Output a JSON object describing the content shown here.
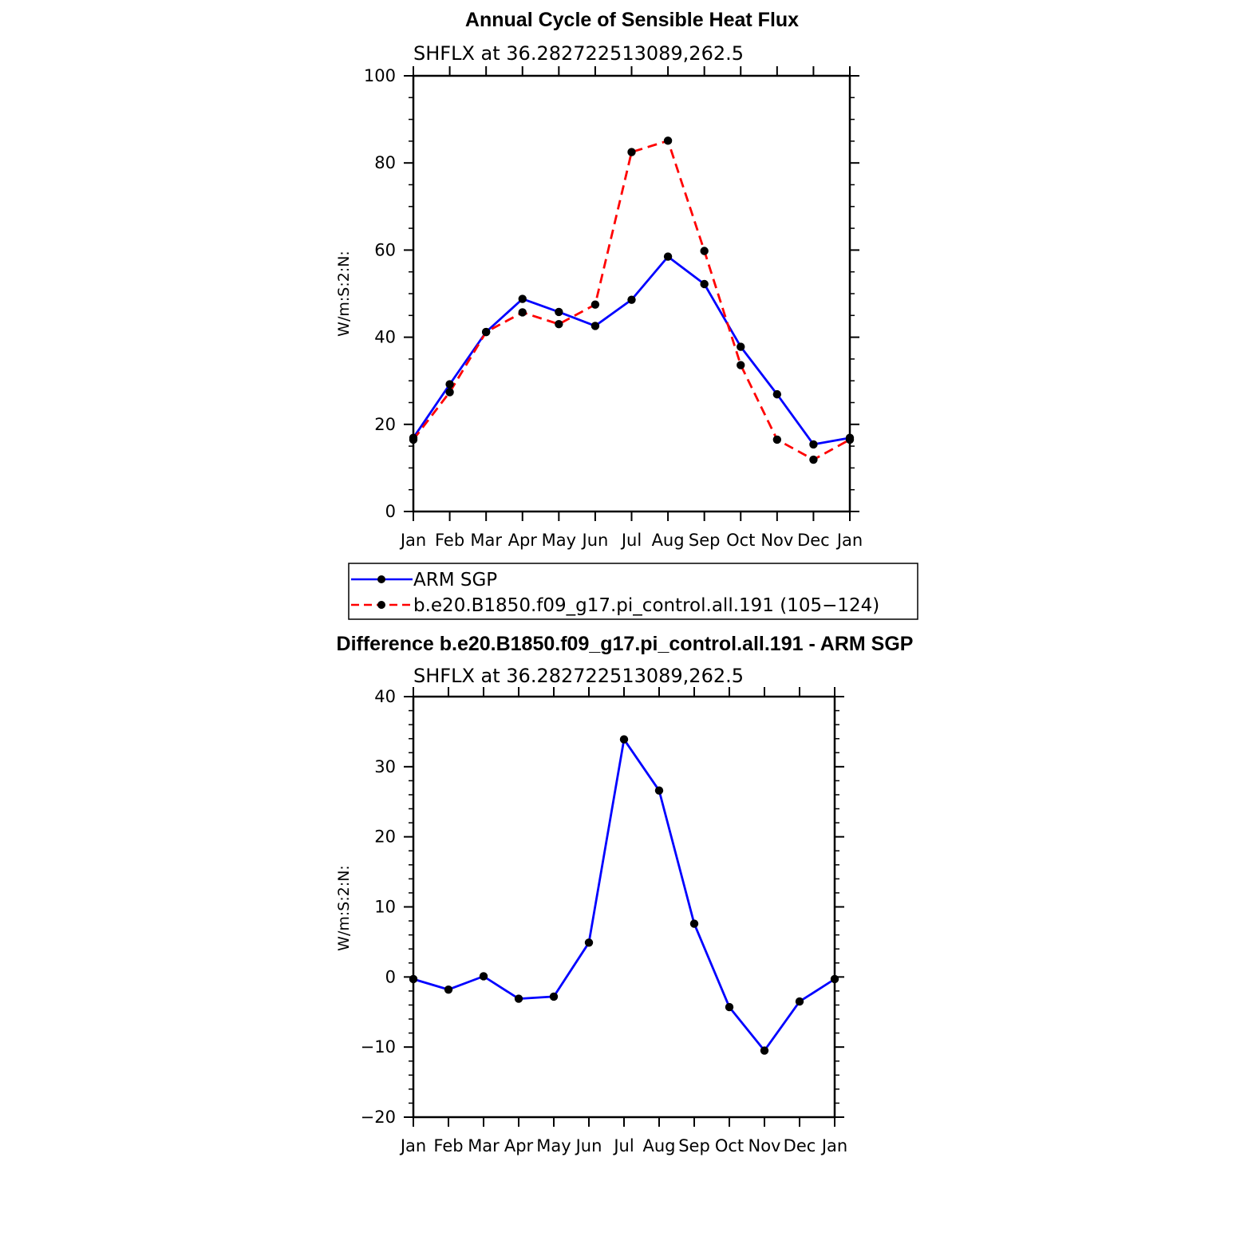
{
  "chart_data": [
    {
      "type": "line",
      "title": "Annual Cycle of Sensible Heat Flux",
      "subtitle": "SHFLX at 36.282722513089,262.5",
      "ylabel": "W/m:S:2:N:",
      "xlabel": "",
      "categories": [
        "Jan",
        "Feb",
        "Mar",
        "Apr",
        "May",
        "Jun",
        "Jul",
        "Aug",
        "Sep",
        "Oct",
        "Nov",
        "Dec",
        "Jan"
      ],
      "ylim": [
        0,
        100
      ],
      "yticks": [
        "0",
        "20",
        "40",
        "60",
        "80",
        "100"
      ],
      "series": [
        {
          "name": "ARM SGP",
          "color": "#0000ff",
          "dash": "solid",
          "values": [
            16.9,
            29.2,
            41.2,
            48.8,
            45.8,
            42.6,
            48.6,
            58.5,
            52.2,
            37.8,
            26.9,
            15.4,
            16.9
          ]
        },
        {
          "name": "b.e20.B1850.f09_g17.pi_control.all.191 (105−124)",
          "color": "#ff0000",
          "dash": "dashed",
          "values": [
            16.5,
            27.4,
            41.2,
            45.7,
            43.0,
            47.5,
            82.5,
            85.1,
            59.8,
            33.6,
            16.5,
            11.9,
            16.5
          ]
        }
      ],
      "legend_position": "below"
    },
    {
      "type": "line",
      "title": "Difference b.e20.B1850.f09_g17.pi_control.all.191 - ARM SGP",
      "subtitle": "SHFLX at 36.282722513089,262.5",
      "ylabel": "W/m:S:2:N:",
      "xlabel": "",
      "categories": [
        "Jan",
        "Feb",
        "Mar",
        "Apr",
        "May",
        "Jun",
        "Jul",
        "Aug",
        "Sep",
        "Oct",
        "Nov",
        "Dec",
        "Jan"
      ],
      "ylim": [
        -20,
        40
      ],
      "yticks": [
        "−20",
        "−10",
        "0",
        "10",
        "20",
        "30",
        "40"
      ],
      "series": [
        {
          "name": "Difference",
          "color": "#0000ff",
          "dash": "solid",
          "values": [
            -0.3,
            -1.8,
            0.1,
            -3.1,
            -2.8,
            4.9,
            33.9,
            26.6,
            7.6,
            -4.3,
            -10.5,
            -3.5,
            -0.3
          ]
        }
      ]
    }
  ]
}
